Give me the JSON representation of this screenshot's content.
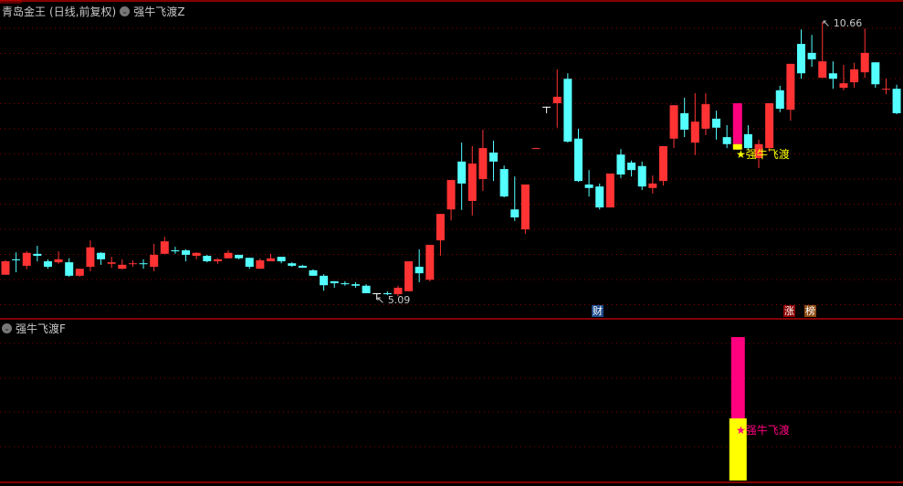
{
  "header": {
    "stock": "青岛金王",
    "period": "(日线,前复权)",
    "indicator_main": "强牛飞渡Z"
  },
  "sub_panel": {
    "indicator": "强牛飞渡F"
  },
  "markers": {
    "high_label": "10.66",
    "low_label": "5.09",
    "signal_label": "★强牛飞渡",
    "tag_cai": "财",
    "tag_zhang": "涨",
    "tag_bang": "榜"
  },
  "colors": {
    "up": "#ff3333",
    "down": "#54ffff",
    "doji": "#ffffff",
    "signal_pink": "#ff007f",
    "signal_yellow": "#ffff00",
    "grid": "#8b0000",
    "tag_cai_bg": "#1c4b8a",
    "tag_zhang_bg": "#8b0000",
    "tag_bang_bg": "#8b4a10"
  },
  "chart_data": {
    "type": "candlestick",
    "fields": [
      "open",
      "high",
      "low",
      "close"
    ],
    "high": 10.66,
    "low": 5.09,
    "signal_index": 69,
    "tag_indices": {
      "cai": 56,
      "zhang": 74,
      "bang": 76
    },
    "candles": [
      [
        5.59,
        5.88,
        5.59,
        5.86
      ],
      [
        5.9,
        6.04,
        5.64,
        5.88
      ],
      [
        5.77,
        6.06,
        5.7,
        6.03
      ],
      [
        6.01,
        6.17,
        5.86,
        5.97
      ],
      [
        5.86,
        5.9,
        5.71,
        5.75
      ],
      [
        5.84,
        6.06,
        5.81,
        5.9
      ],
      [
        5.84,
        5.92,
        5.55,
        5.57
      ],
      [
        5.57,
        5.71,
        5.55,
        5.71
      ],
      [
        5.75,
        6.28,
        5.66,
        6.14
      ],
      [
        6.03,
        6.04,
        5.79,
        5.9
      ],
      [
        5.81,
        5.95,
        5.73,
        5.84
      ],
      [
        5.71,
        5.9,
        5.7,
        5.79
      ],
      [
        5.81,
        5.88,
        5.75,
        5.82
      ],
      [
        5.82,
        5.9,
        5.71,
        5.81
      ],
      [
        5.75,
        6.21,
        5.66,
        5.99
      ],
      [
        6.01,
        6.35,
        6.01,
        6.26
      ],
      [
        6.08,
        6.15,
        6.01,
        6.06
      ],
      [
        6.08,
        6.1,
        5.86,
        5.99
      ],
      [
        5.97,
        6.04,
        5.9,
        6.03
      ],
      [
        5.97,
        5.99,
        5.84,
        5.86
      ],
      [
        5.86,
        5.92,
        5.81,
        5.9
      ],
      [
        5.92,
        6.08,
        5.92,
        6.03
      ],
      [
        5.99,
        5.99,
        5.9,
        5.92
      ],
      [
        5.93,
        5.93,
        5.71,
        5.75
      ],
      [
        5.71,
        5.92,
        5.71,
        5.88
      ],
      [
        5.86,
        6.01,
        5.86,
        5.92
      ],
      [
        5.95,
        5.95,
        5.82,
        5.86
      ],
      [
        5.82,
        5.84,
        5.75,
        5.77
      ],
      [
        5.77,
        5.79,
        5.73,
        5.73
      ],
      [
        5.68,
        5.7,
        5.57,
        5.57
      ],
      [
        5.57,
        5.6,
        5.27,
        5.38
      ],
      [
        5.46,
        5.46,
        5.33,
        5.42
      ],
      [
        5.42,
        5.46,
        5.37,
        5.4
      ],
      [
        5.4,
        5.44,
        5.33,
        5.37
      ],
      [
        5.37,
        5.4,
        5.22,
        5.22
      ],
      [
        5.22,
        5.22,
        5.09,
        5.22
      ],
      [
        5.22,
        5.26,
        5.18,
        5.2
      ],
      [
        5.2,
        5.37,
        5.16,
        5.33
      ],
      [
        5.26,
        5.86,
        5.26,
        5.86
      ],
      [
        5.75,
        6.1,
        5.44,
        5.62
      ],
      [
        5.49,
        6.19,
        5.46,
        6.19
      ],
      [
        6.28,
        6.81,
        5.97,
        6.81
      ],
      [
        6.9,
        7.49,
        6.68,
        7.49
      ],
      [
        7.86,
        8.24,
        6.89,
        7.42
      ],
      [
        7.07,
        8.17,
        6.78,
        7.82
      ],
      [
        7.51,
        8.5,
        7.27,
        8.13
      ],
      [
        8.04,
        8.28,
        7.47,
        7.86
      ],
      [
        7.71,
        7.78,
        7.14,
        7.16
      ],
      [
        6.9,
        7.56,
        6.67,
        6.74
      ],
      [
        6.5,
        7.4,
        6.41,
        7.4
      ],
      [
        8.12,
        8.14,
        8.12,
        8.13
      ],
      [
        8.96,
        8.96,
        8.83,
        8.96
      ],
      [
        9.03,
        9.71,
        8.54,
        9.16
      ],
      [
        9.52,
        9.63,
        8.24,
        8.26
      ],
      [
        8.32,
        8.52,
        7.45,
        7.47
      ],
      [
        7.4,
        7.69,
        7.16,
        7.33
      ],
      [
        7.36,
        7.42,
        6.9,
        6.94
      ],
      [
        6.94,
        7.62,
        6.94,
        7.62
      ],
      [
        8.0,
        8.11,
        7.53,
        7.6
      ],
      [
        7.84,
        7.88,
        7.56,
        7.69
      ],
      [
        7.77,
        7.86,
        7.29,
        7.36
      ],
      [
        7.33,
        7.58,
        7.22,
        7.42
      ],
      [
        7.47,
        8.17,
        7.38,
        8.17
      ],
      [
        8.32,
        8.99,
        8.13,
        8.99
      ],
      [
        8.83,
        9.14,
        8.35,
        8.5
      ],
      [
        8.24,
        9.23,
        7.99,
        8.66
      ],
      [
        8.52,
        9.23,
        8.39,
        9.01
      ],
      [
        8.72,
        8.88,
        8.3,
        8.54
      ],
      [
        8.35,
        8.59,
        8.13,
        8.21
      ],
      [
        8.1,
        9.03,
        8.1,
        9.03
      ],
      [
        8.41,
        8.59,
        8.1,
        8.13
      ],
      [
        7.93,
        8.3,
        7.73,
        8.21
      ],
      [
        8.13,
        9.03,
        8.06,
        9.03
      ],
      [
        9.29,
        9.38,
        8.85,
        8.92
      ],
      [
        8.9,
        9.82,
        8.68,
        9.82
      ],
      [
        10.22,
        10.51,
        9.52,
        9.63
      ],
      [
        10.04,
        10.4,
        9.76,
        9.91
      ],
      [
        9.54,
        10.66,
        9.54,
        9.87
      ],
      [
        9.63,
        9.87,
        9.32,
        9.52
      ],
      [
        9.34,
        9.8,
        9.29,
        9.43
      ],
      [
        9.45,
        9.84,
        9.34,
        9.71
      ],
      [
        9.65,
        10.53,
        9.54,
        10.04
      ],
      [
        9.85,
        9.85,
        9.34,
        9.41
      ],
      [
        9.31,
        9.52,
        9.21,
        9.32
      ],
      [
        9.32,
        9.4,
        8.81,
        8.83
      ]
    ]
  }
}
